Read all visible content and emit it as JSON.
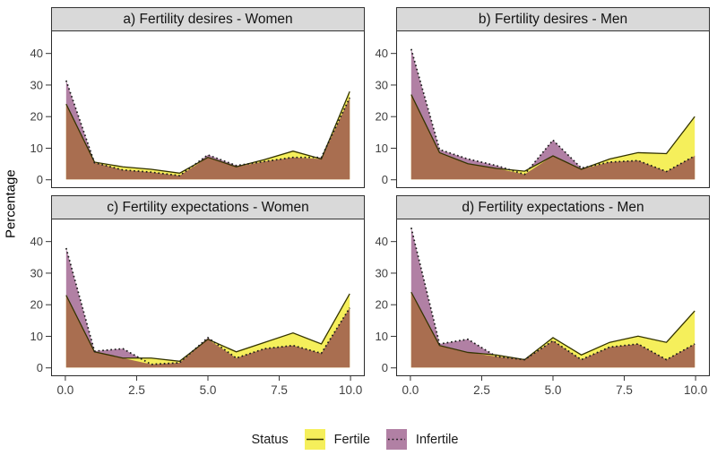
{
  "figure": {
    "ylabel": "Percentage"
  },
  "legend": {
    "title": "Status",
    "entries": [
      {
        "label": "Fertile",
        "fill": "#f5ef5b",
        "line": "#333300",
        "line_style": "solid"
      },
      {
        "label": "Infertile",
        "fill": "#b180a4",
        "line": "#1a1a1a",
        "line_style": "dotted"
      }
    ]
  },
  "chart_data": {
    "type": "area",
    "x": [
      0,
      1,
      2,
      3,
      4,
      5,
      6,
      7,
      8,
      9,
      10
    ],
    "xlim": [
      -0.5,
      10.5
    ],
    "ylim": [
      -2.35,
      47
    ],
    "x_ticks": [
      "0.0",
      "2.5",
      "5.0",
      "7.5",
      "10.0"
    ],
    "x_tick_values": [
      0,
      2.5,
      5,
      7.5,
      10
    ],
    "y_ticks": [
      "0",
      "10",
      "20",
      "30",
      "40"
    ],
    "y_tick_values": [
      0,
      10,
      20,
      30,
      40
    ],
    "ylabel": "Percentage",
    "legend_position": "bottom",
    "grid": false,
    "panels": [
      {
        "id": "a",
        "title": "a) Fertility desires - Women",
        "series": [
          {
            "name": "Fertile",
            "values": [
              24,
              5.5,
              4,
              3.2,
              2,
              7,
              4,
              6.3,
              9,
              6.5,
              28
            ]
          },
          {
            "name": "Infertile",
            "values": [
              31.5,
              5.3,
              3,
              2.3,
              1.2,
              7.8,
              4.4,
              5.7,
              7,
              7,
              26
            ]
          }
        ]
      },
      {
        "id": "b",
        "title": "b) Fertility desires - Men",
        "series": [
          {
            "name": "Fertile",
            "values": [
              27,
              8.5,
              5,
              3.5,
              2.6,
              7.5,
              3.2,
              6.5,
              8.5,
              8.2,
              20
            ]
          },
          {
            "name": "Infertile",
            "values": [
              41.5,
              9.5,
              6.5,
              4.4,
              1.6,
              12.5,
              3.6,
              5.5,
              6,
              2.5,
              7.5
            ]
          }
        ]
      },
      {
        "id": "c",
        "title": "c) Fertility expectations - Women",
        "series": [
          {
            "name": "Fertile",
            "values": [
              23,
              5,
              3,
              3,
              2,
              9,
              5,
              8,
              11,
              7.5,
              23.5
            ]
          },
          {
            "name": "Infertile",
            "values": [
              38,
              5.2,
              6,
              1,
              1.5,
              9.5,
              3,
              6,
              7,
              4.5,
              19
            ]
          }
        ]
      },
      {
        "id": "d",
        "title": "d) Fertility expectations - Men",
        "series": [
          {
            "name": "Fertile",
            "values": [
              24,
              7,
              4.8,
              4,
              2.5,
              9.5,
              4,
              8,
              10,
              8,
              18
            ]
          },
          {
            "name": "Infertile",
            "values": [
              44.5,
              7.5,
              9,
              3.5,
              2.5,
              8.5,
              2.5,
              6.5,
              7.5,
              2.5,
              7.5
            ]
          }
        ]
      }
    ],
    "colors": {
      "fertile_fill": "#f5ef5b",
      "fertile_line": "#333300",
      "infertile_fill": "#b180a4",
      "infertile_line": "#1a1a1a",
      "overlap_fill": "#a96e50",
      "strip_bg": "#d9d9d9",
      "panel_border": "#2b2b2b",
      "tick_text": "#404040"
    }
  }
}
